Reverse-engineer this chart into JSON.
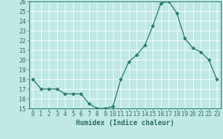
{
  "title": "",
  "xlabel": "Humidex (Indice chaleur)",
  "x": [
    0,
    1,
    2,
    3,
    4,
    5,
    6,
    7,
    8,
    9,
    10,
    11,
    12,
    13,
    14,
    15,
    16,
    17,
    18,
    19,
    20,
    21,
    22,
    23
  ],
  "y": [
    18.0,
    17.0,
    17.0,
    17.0,
    16.5,
    16.5,
    16.5,
    15.5,
    15.0,
    15.0,
    15.2,
    18.0,
    19.8,
    20.5,
    21.5,
    23.5,
    25.8,
    26.0,
    24.8,
    22.2,
    21.2,
    20.8,
    20.0,
    18.0
  ],
  "line_color": "#2e7d6e",
  "marker": "D",
  "marker_size": 2.5,
  "bg_color": "#c0e8e4",
  "grid_color": "#b0d8d4",
  "ylim": [
    15,
    26
  ],
  "xlim": [
    -0.5,
    23.5
  ],
  "yticks": [
    15,
    16,
    17,
    18,
    19,
    20,
    21,
    22,
    23,
    24,
    25,
    26
  ],
  "xticks": [
    0,
    1,
    2,
    3,
    4,
    5,
    6,
    7,
    8,
    9,
    10,
    11,
    12,
    13,
    14,
    15,
    16,
    17,
    18,
    19,
    20,
    21,
    22,
    23
  ],
  "tick_color": "#2e6e62",
  "spine_color": "#2e7d6e",
  "label_fontsize": 7,
  "tick_fontsize": 6,
  "linewidth": 1.0
}
